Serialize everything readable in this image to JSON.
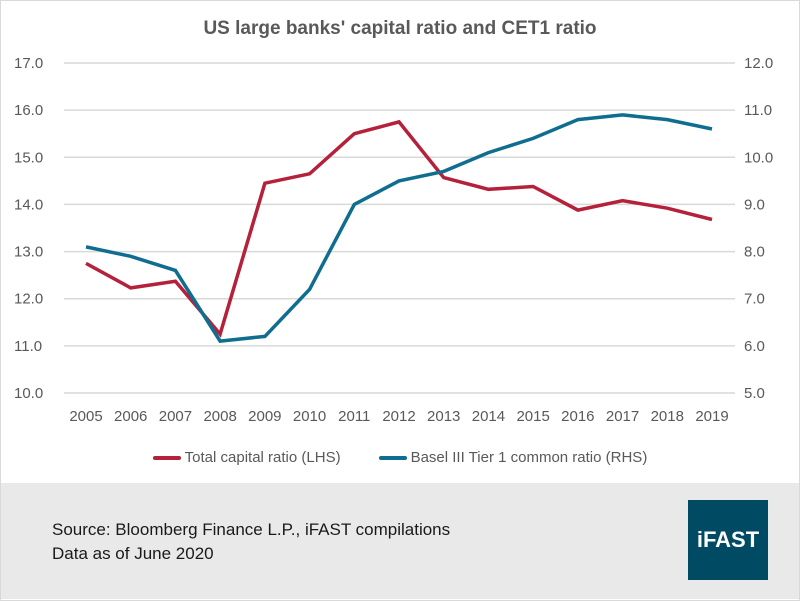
{
  "footer": {
    "source_line": "Source: Bloomberg Finance L.P., iFAST compilations",
    "date_line": "Data as of June 2020",
    "logo_text": "iFAST"
  },
  "chart_data": {
    "type": "line",
    "title": "US large banks' capital ratio and CET1 ratio",
    "x": [
      "2005",
      "2006",
      "2007",
      "2008",
      "2009",
      "2010",
      "2011",
      "2012",
      "2013",
      "2014",
      "2015",
      "2016",
      "2017",
      "2018",
      "2019"
    ],
    "series": [
      {
        "name": "Total capital ratio (LHS)",
        "axis": "left",
        "color": "#b5213a",
        "values": [
          12.75,
          12.23,
          12.37,
          11.25,
          14.45,
          14.65,
          15.5,
          15.75,
          14.57,
          14.32,
          14.38,
          13.88,
          14.08,
          13.92,
          13.68
        ]
      },
      {
        "name": "Basel III Tier 1 common ratio (RHS)",
        "axis": "right",
        "color": "#0f6e8f",
        "values": [
          8.1,
          7.9,
          7.6,
          6.1,
          6.2,
          7.2,
          9.0,
          9.5,
          9.7,
          10.1,
          10.4,
          10.8,
          10.9,
          10.8,
          10.6
        ]
      }
    ],
    "ylim_left": [
      10.0,
      17.0
    ],
    "ylim_right": [
      5.0,
      12.0
    ],
    "yticks_left": [
      "17.0",
      "16.0",
      "15.0",
      "14.0",
      "13.0",
      "12.0",
      "11.0",
      "10.0"
    ],
    "yticks_right": [
      "12.0",
      "11.0",
      "10.0",
      "9.0",
      "8.0",
      "7.0",
      "6.0",
      "5.0"
    ],
    "xlabel": "",
    "ylabel_left": "",
    "ylabel_right": "",
    "grid": true,
    "legend_position": "bottom"
  }
}
